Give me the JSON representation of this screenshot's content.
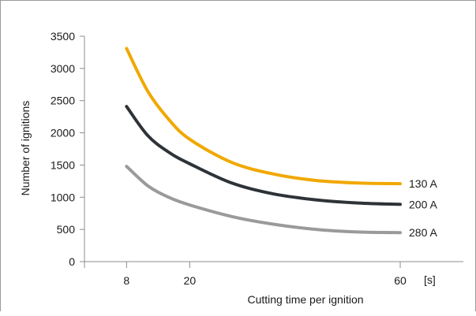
{
  "chart_data": {
    "type": "line",
    "title": "",
    "xlabel": "Cutting time per ignition",
    "ylabel": "Number of ignitions",
    "x_unit": "[s]",
    "x_ticks": [
      8,
      20,
      60
    ],
    "y_ticks": [
      0,
      500,
      1000,
      1500,
      2000,
      2500,
      3000,
      3500
    ],
    "xlim": [
      0,
      72
    ],
    "ylim": [
      0,
      3500
    ],
    "grid": false,
    "series": [
      {
        "name": "130 A",
        "color": "#f0a800",
        "x": [
          8,
          12,
          16,
          20,
          28,
          36,
          44,
          52,
          60
        ],
        "y": [
          3310,
          2650,
          2210,
          1900,
          1540,
          1360,
          1260,
          1220,
          1210
        ]
      },
      {
        "name": "200 A",
        "color": "#2e3338",
        "x": [
          8,
          12,
          16,
          20,
          28,
          36,
          44,
          52,
          60
        ],
        "y": [
          2410,
          1960,
          1700,
          1520,
          1220,
          1050,
          960,
          910,
          890
        ]
      },
      {
        "name": "280 A",
        "color": "#9a9a9a",
        "x": [
          8,
          12,
          16,
          20,
          28,
          36,
          44,
          52,
          60
        ],
        "y": [
          1480,
          1180,
          1000,
          880,
          700,
          580,
          500,
          460,
          450
        ]
      }
    ]
  }
}
